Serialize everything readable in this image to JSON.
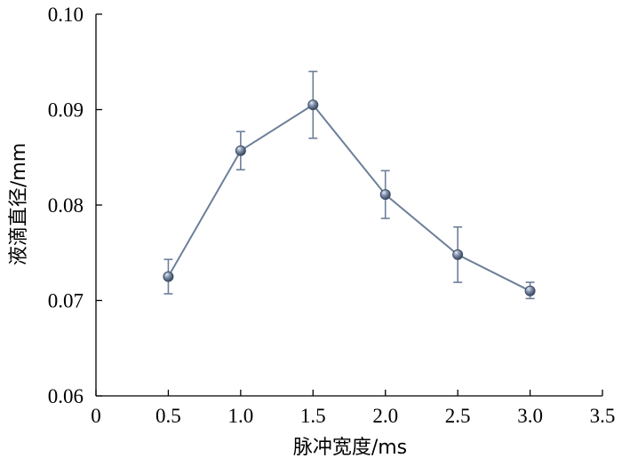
{
  "chart_data": {
    "type": "line",
    "title": "",
    "xlabel": "脉冲宽度/ms",
    "ylabel": "液滴直径/mm",
    "xlim": [
      0,
      3.5
    ],
    "ylim": [
      0.06,
      0.1
    ],
    "xticks": [
      "0",
      "0.5",
      "1.0",
      "1.5",
      "2.0",
      "2.5",
      "3.0",
      "3.5"
    ],
    "yticks": [
      "0.06",
      "0.07",
      "0.08",
      "0.09",
      "0.10"
    ],
    "grid": false,
    "legend": "none",
    "series": [
      {
        "x": [
          0.5,
          1.0,
          1.5,
          2.0,
          2.5,
          3.0
        ],
        "y": [
          0.0725,
          0.0857,
          0.0905,
          0.0811,
          0.0748,
          0.071
        ],
        "error_low": [
          0.0707,
          0.0837,
          0.087,
          0.0786,
          0.0719,
          0.0702
        ],
        "error_high": [
          0.0743,
          0.0877,
          0.094,
          0.0836,
          0.0777,
          0.0719
        ],
        "color": "#6d7f99",
        "marker_color": "#4f6079"
      }
    ]
  }
}
